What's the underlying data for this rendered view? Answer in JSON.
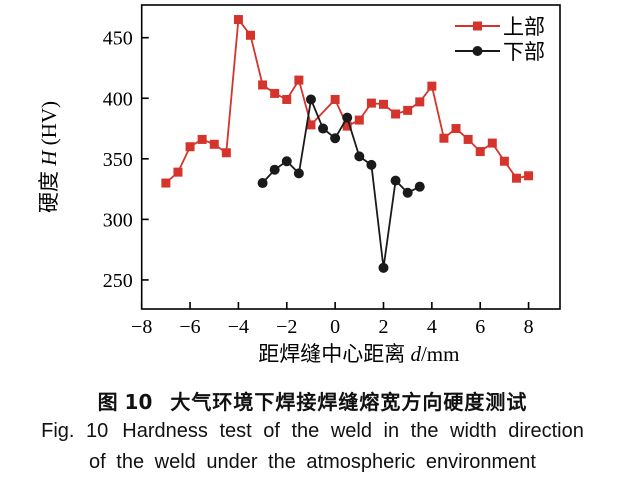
{
  "figure": {
    "caption_zh": {
      "tag": "图 10",
      "text": "大气环境下焊接焊缝熔宽方向硬度测试"
    },
    "caption_en": {
      "tag": "Fig. 10",
      "line1": "Hardness test of the weld in the width direction",
      "line2": "of the weld under the atmospheric environment"
    }
  },
  "chart_data": {
    "type": "line",
    "title": "",
    "xlabel": {
      "prefix": "距焊缝中心距离 ",
      "var": "d",
      "suffix": "/mm"
    },
    "ylabel": {
      "prefix": "硬度 ",
      "var": "H",
      "suffix": " (HV)"
    },
    "xlim": [
      -8,
      9.3
    ],
    "ylim": [
      226,
      477
    ],
    "x_ticks": [
      -8,
      -6,
      -4,
      -2,
      0,
      2,
      4,
      6,
      8
    ],
    "x_tick_labels": [
      "−8",
      "−6",
      "−4",
      "−2",
      "0",
      "2",
      "4",
      "6",
      "8"
    ],
    "y_ticks": [
      250,
      300,
      350,
      400,
      450
    ],
    "y_tick_labels": [
      "250",
      "300",
      "350",
      "400",
      "450"
    ],
    "grid": false,
    "legend_position": "top-right",
    "frame_color": "#000000",
    "series": [
      {
        "name": "上部",
        "id": "upper",
        "color": "#d5342c",
        "marker": "square",
        "points": [
          [
            -7,
            330
          ],
          [
            -6.5,
            339
          ],
          [
            -6,
            360
          ],
          [
            -5.5,
            366
          ],
          [
            -5,
            362
          ],
          [
            -4.5,
            355
          ],
          [
            -4,
            465
          ],
          [
            -3.5,
            452
          ],
          [
            -3,
            411
          ],
          [
            -2.5,
            404
          ],
          [
            -2,
            399
          ],
          [
            -1.5,
            415
          ],
          [
            -1,
            378
          ],
          [
            0,
            399
          ],
          [
            0.5,
            377
          ],
          [
            1,
            382
          ],
          [
            1.5,
            396
          ],
          [
            2,
            395
          ],
          [
            2.5,
            387
          ],
          [
            3,
            390
          ],
          [
            3.5,
            397
          ],
          [
            4,
            410
          ],
          [
            4.5,
            367
          ],
          [
            5,
            375
          ],
          [
            5.5,
            366
          ],
          [
            6,
            356
          ],
          [
            6.5,
            363
          ],
          [
            7,
            348
          ],
          [
            7.5,
            334
          ],
          [
            8,
            336
          ]
        ]
      },
      {
        "name": "下部",
        "id": "lower",
        "color": "#1a1a1a",
        "marker": "circle",
        "points": [
          [
            -3,
            330
          ],
          [
            -2.5,
            341
          ],
          [
            -2,
            348
          ],
          [
            -1.5,
            338
          ],
          [
            -1,
            399
          ],
          [
            -0.5,
            375
          ],
          [
            0,
            367
          ],
          [
            0.5,
            384
          ],
          [
            1,
            352
          ],
          [
            1.5,
            345
          ],
          [
            2,
            260
          ],
          [
            2.5,
            332
          ],
          [
            3,
            322
          ],
          [
            3.5,
            327
          ]
        ]
      }
    ]
  }
}
